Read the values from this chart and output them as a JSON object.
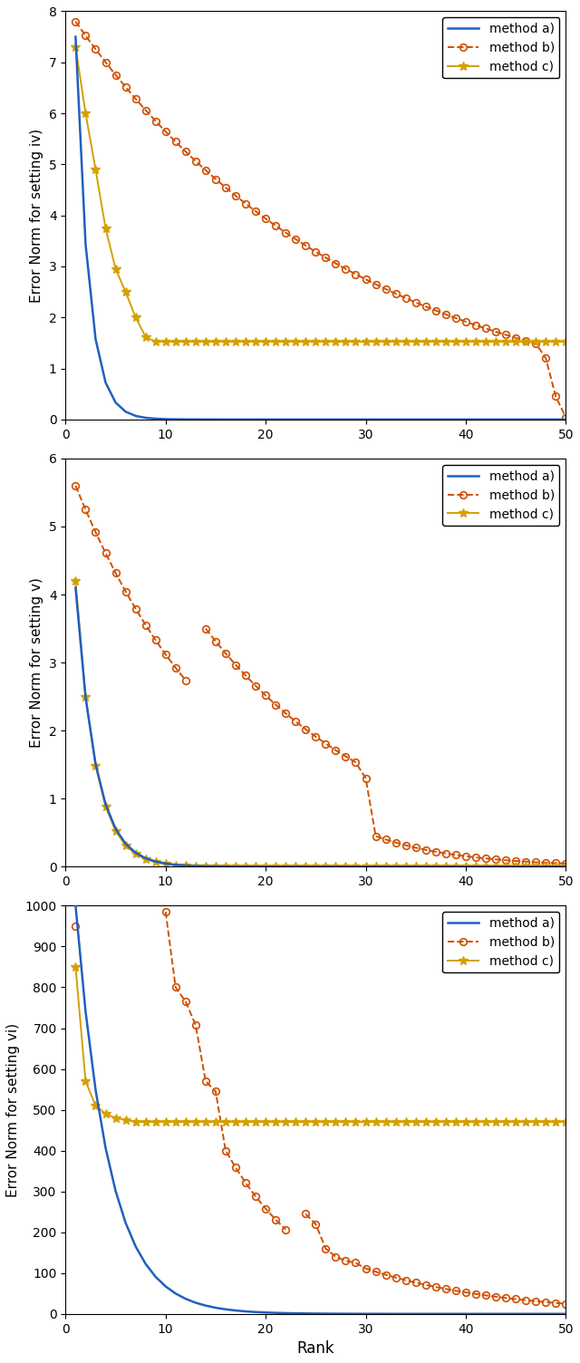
{
  "fig_width": 6.4,
  "fig_height": 15.04,
  "dpi": 100,
  "plots": [
    {
      "ylabel": "Error Norm for setting iv)",
      "ylim": [
        0,
        8
      ],
      "yticks": [
        0,
        1,
        2,
        3,
        4,
        5,
        6,
        7,
        8
      ],
      "xlim": [
        0,
        50
      ],
      "xticks": [
        0,
        10,
        20,
        30,
        40,
        50
      ]
    },
    {
      "ylabel": "Error Norm for setting v)",
      "ylim": [
        0,
        6
      ],
      "yticks": [
        0,
        1,
        2,
        3,
        4,
        5,
        6
      ],
      "xlim": [
        0,
        50
      ],
      "xticks": [
        0,
        10,
        20,
        30,
        40,
        50
      ]
    },
    {
      "ylabel": "Error Norm for setting vi)",
      "ylim": [
        0,
        1000
      ],
      "yticks": [
        0,
        100,
        200,
        300,
        400,
        500,
        600,
        700,
        800,
        900,
        1000
      ],
      "xlim": [
        0,
        50
      ],
      "xticks": [
        0,
        10,
        20,
        30,
        40,
        50
      ]
    }
  ],
  "xlabel": "Rank",
  "color_a": "#2060c0",
  "color_b": "#d05000",
  "color_c": "#d4a000",
  "legend_labels": [
    "method a)",
    "method b)",
    "method c)"
  ],
  "background": "#ffffff"
}
